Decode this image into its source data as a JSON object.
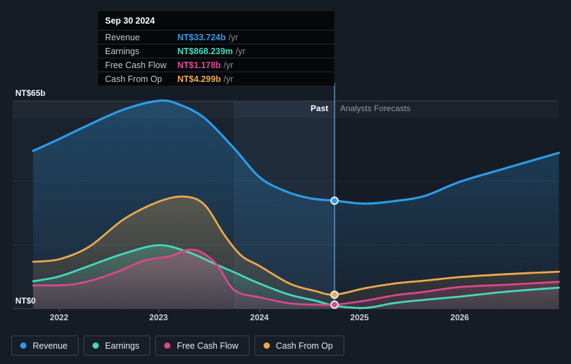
{
  "tooltip": {
    "date": "Sep 30 2024",
    "rows": [
      {
        "label": "Revenue",
        "value": "NT$33.724b",
        "unit": "/yr",
        "color": "#2b9ce8"
      },
      {
        "label": "Earnings",
        "value": "NT$868.239m",
        "unit": "/yr",
        "color": "#46d8be"
      },
      {
        "label": "Free Cash Flow",
        "value": "NT$1.178b",
        "unit": "/yr",
        "color": "#e24a9c"
      },
      {
        "label": "Cash From Op",
        "value": "NT$4.299b",
        "unit": "/yr",
        "color": "#eda94c"
      }
    ]
  },
  "axis": {
    "y_top_label": "NT$65b",
    "y_bottom_label": "NT$0",
    "x_ticks": [
      "2022",
      "2023",
      "2024",
      "2025",
      "2026"
    ]
  },
  "annotations": {
    "past": "Past",
    "forecast": "Analysts Forecasts"
  },
  "legend": [
    {
      "label": "Revenue",
      "color": "#2b9ce8"
    },
    {
      "label": "Earnings",
      "color": "#46d8be"
    },
    {
      "label": "Free Cash Flow",
      "color": "#d9478f"
    },
    {
      "label": "Cash From Op",
      "color": "#eda94c"
    }
  ],
  "chart_data": {
    "type": "area",
    "title": "Past performance and analyst forecasts",
    "x_unit": "decimal years",
    "y_unit": "NT$ billions per year",
    "ylim": [
      0,
      65
    ],
    "y_gridline_values": [
      20,
      40,
      60,
      65
    ],
    "x_tick_values": [
      2022,
      2023,
      2024,
      2025,
      2026
    ],
    "divider_t": 2024.75,
    "series": [
      {
        "name": "Revenue",
        "color": "#2b9ce8",
        "points": [
          [
            2021.74,
            49.3
          ],
          [
            2022.0,
            53.0
          ],
          [
            2022.3,
            57.5
          ],
          [
            2022.65,
            62.3
          ],
          [
            2023.0,
            65.0
          ],
          [
            2023.2,
            63.8
          ],
          [
            2023.45,
            59.6
          ],
          [
            2023.75,
            50.0
          ],
          [
            2024.0,
            41.1
          ],
          [
            2024.25,
            36.8
          ],
          [
            2024.5,
            34.5
          ],
          [
            2024.75,
            33.724
          ],
          [
            2025.05,
            32.8
          ],
          [
            2025.35,
            33.6
          ],
          [
            2025.65,
            35.2
          ],
          [
            2026.0,
            39.6
          ],
          [
            2026.45,
            43.8
          ],
          [
            2026.99,
            48.7
          ]
        ]
      },
      {
        "name": "Earnings",
        "color": "#46d8be",
        "points": [
          [
            2021.74,
            8.5
          ],
          [
            2022.0,
            10.0
          ],
          [
            2022.3,
            13.3
          ],
          [
            2022.65,
            17.2
          ],
          [
            2023.0,
            19.8
          ],
          [
            2023.3,
            17.5
          ],
          [
            2023.55,
            14.0
          ],
          [
            2023.75,
            11.3
          ],
          [
            2024.0,
            7.8
          ],
          [
            2024.3,
            4.3
          ],
          [
            2024.55,
            2.5
          ],
          [
            2024.75,
            0.868
          ],
          [
            2025.05,
            0.15
          ],
          [
            2025.35,
            1.7
          ],
          [
            2025.65,
            2.7
          ],
          [
            2026.0,
            3.7
          ],
          [
            2026.45,
            5.2
          ],
          [
            2026.99,
            6.5
          ]
        ]
      },
      {
        "name": "Free Cash Flow",
        "color": "#d9478f",
        "points": [
          [
            2021.74,
            7.2
          ],
          [
            2022.1,
            7.4
          ],
          [
            2022.35,
            9.0
          ],
          [
            2022.6,
            11.7
          ],
          [
            2022.85,
            15.0
          ],
          [
            2023.1,
            16.3
          ],
          [
            2023.28,
            18.3
          ],
          [
            2023.42,
            17.6
          ],
          [
            2023.58,
            13.5
          ],
          [
            2023.75,
            5.7
          ],
          [
            2024.0,
            3.5
          ],
          [
            2024.3,
            1.6
          ],
          [
            2024.55,
            1.2
          ],
          [
            2024.75,
            1.178
          ],
          [
            2025.05,
            2.4
          ],
          [
            2025.35,
            4.1
          ],
          [
            2025.65,
            5.2
          ],
          [
            2026.0,
            6.7
          ],
          [
            2026.45,
            7.4
          ],
          [
            2026.99,
            8.3
          ]
        ]
      },
      {
        "name": "Cash From Op",
        "color": "#eda94c",
        "points": [
          [
            2021.74,
            14.6
          ],
          [
            2022.0,
            15.4
          ],
          [
            2022.3,
            19.3
          ],
          [
            2022.65,
            28.0
          ],
          [
            2023.0,
            33.5
          ],
          [
            2023.25,
            35.0
          ],
          [
            2023.45,
            32.5
          ],
          [
            2023.65,
            23.0
          ],
          [
            2023.82,
            16.5
          ],
          [
            2024.0,
            13.3
          ],
          [
            2024.3,
            7.8
          ],
          [
            2024.55,
            5.5
          ],
          [
            2024.75,
            4.299
          ],
          [
            2025.05,
            6.3
          ],
          [
            2025.35,
            7.8
          ],
          [
            2025.65,
            8.7
          ],
          [
            2026.0,
            9.8
          ],
          [
            2026.45,
            10.7
          ],
          [
            2026.99,
            11.5
          ]
        ]
      }
    ],
    "markers": [
      {
        "series": 0,
        "t": 2024.75,
        "v": 33.724
      },
      {
        "series": 3,
        "t": 2024.75,
        "v": 4.299
      },
      {
        "series": 2,
        "t": 2024.75,
        "v": 1.178
      }
    ]
  }
}
